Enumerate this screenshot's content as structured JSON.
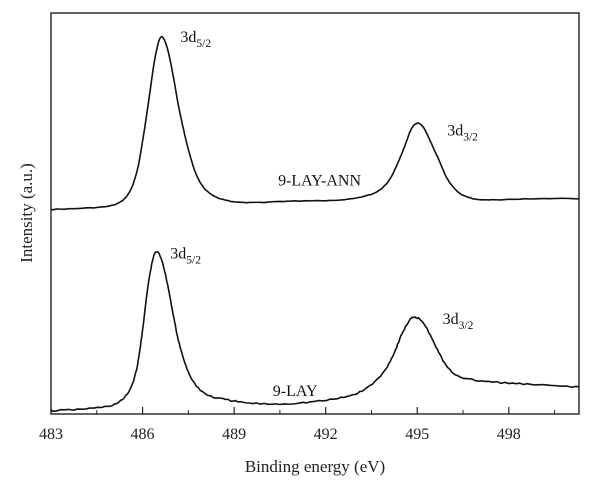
{
  "chart_data": {
    "type": "line",
    "title": "",
    "xlabel": "Binding energy (eV)",
    "ylabel": "Intensity (a.u.)",
    "xlim": [
      483,
      500.3
    ],
    "ylim": [
      0,
      1.0
    ],
    "x_ticks": [
      "483",
      "486",
      "489",
      "492",
      "495",
      "498"
    ],
    "y_ticks_shown": false,
    "grid": false,
    "legend": "none",
    "series": [
      {
        "name": "9-LAY-ANN",
        "x": [
          483.0,
          484.0,
          485.0,
          485.5,
          485.8,
          486.0,
          486.2,
          486.4,
          486.6,
          486.8,
          487.0,
          487.2,
          487.5,
          487.8,
          488.2,
          488.8,
          489.5,
          490.5,
          491.5,
          492.5,
          493.5,
          494.0,
          494.3,
          494.6,
          494.8,
          495.0,
          495.2,
          495.4,
          495.7,
          496.0,
          496.4,
          497.0,
          498.0,
          499.0,
          500.3
        ],
        "y": [
          0.51,
          0.513,
          0.52,
          0.545,
          0.6,
          0.68,
          0.78,
          0.885,
          0.94,
          0.915,
          0.845,
          0.76,
          0.66,
          0.59,
          0.55,
          0.532,
          0.527,
          0.53,
          0.532,
          0.534,
          0.548,
          0.575,
          0.615,
          0.67,
          0.71,
          0.725,
          0.715,
          0.685,
          0.635,
          0.585,
          0.55,
          0.535,
          0.535,
          0.537,
          0.537
        ]
      },
      {
        "name": "9-LAY",
        "x": [
          483.0,
          484.0,
          485.0,
          485.5,
          485.8,
          486.0,
          486.2,
          486.4,
          486.6,
          486.8,
          487.0,
          487.2,
          487.5,
          487.8,
          488.2,
          488.8,
          489.5,
          490.5,
          491.5,
          492.5,
          493.2,
          493.8,
          494.2,
          494.5,
          494.8,
          495.0,
          495.2,
          495.4,
          495.7,
          496.0,
          496.4,
          497.0,
          498.0,
          499.0,
          500.3
        ],
        "y": [
          0.008,
          0.012,
          0.022,
          0.05,
          0.11,
          0.21,
          0.33,
          0.4,
          0.39,
          0.33,
          0.25,
          0.175,
          0.105,
          0.067,
          0.045,
          0.035,
          0.027,
          0.025,
          0.03,
          0.04,
          0.058,
          0.095,
          0.145,
          0.2,
          0.238,
          0.24,
          0.228,
          0.2,
          0.155,
          0.115,
          0.093,
          0.083,
          0.077,
          0.072,
          0.068
        ]
      }
    ],
    "annotations": [
      {
        "series": "9-LAY-ANN",
        "base": "3d",
        "sub": "5/2",
        "x": 486.65,
        "y": 0.94
      },
      {
        "series": "9-LAY-ANN",
        "base": "3d",
        "sub": "3/2",
        "x": 495.0,
        "y": 0.725
      },
      {
        "series": "9-LAY",
        "base": "3d",
        "sub": "5/2",
        "x": 486.45,
        "y": 0.4
      },
      {
        "series": "9-LAY",
        "base": "3d",
        "sub": "3/2",
        "x": 494.85,
        "y": 0.24
      }
    ],
    "series_labels": [
      {
        "text": "9-LAY-ANN",
        "x": 491.8,
        "y": 0.57
      },
      {
        "text": "9-LAY",
        "x": 491.0,
        "y": 0.045
      }
    ]
  }
}
